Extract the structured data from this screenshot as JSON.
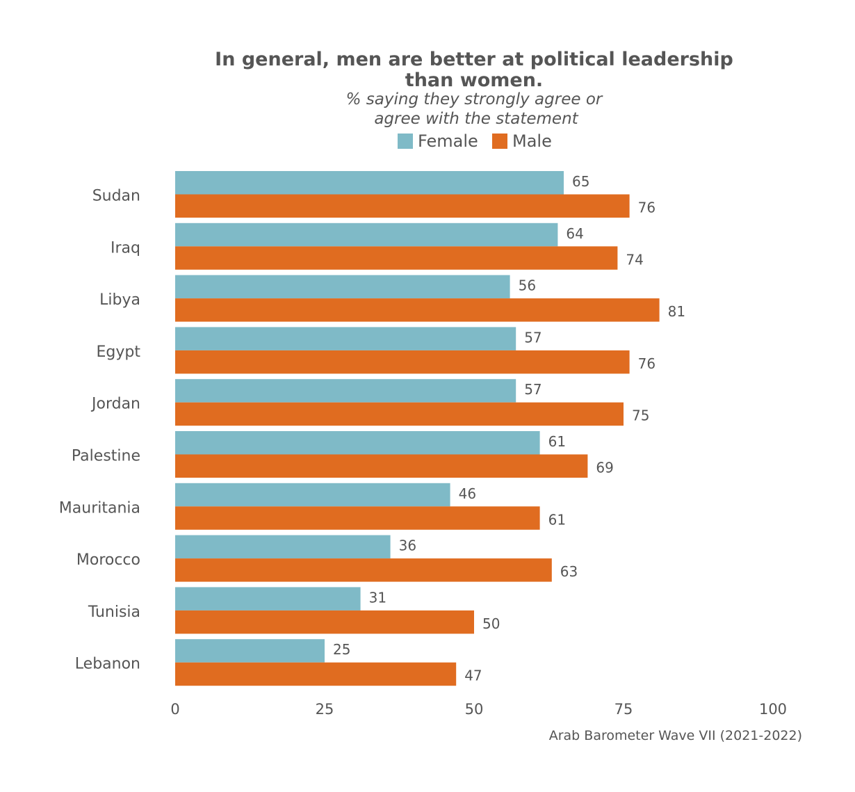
{
  "chart_data": {
    "type": "bar",
    "orientation": "horizontal",
    "title": "In general, men are better at political leadership than women.",
    "title_lines": [
      "In general, men are better at political leadership",
      "than women."
    ],
    "subtitle": "% saying they strongly agree or agree with the statement",
    "subtitle_lines": [
      "% saying they strongly agree or",
      "agree with the statement"
    ],
    "caption": "Arab Barometer Wave VII (2021-2022)",
    "legend_position": "top",
    "grid": false,
    "categories": [
      "Sudan",
      "Iraq",
      "Libya",
      "Egypt",
      "Jordan",
      "Palestine",
      "Mauritania",
      "Morocco",
      "Tunisia",
      "Lebanon"
    ],
    "series": [
      {
        "name": "Female",
        "color": "#7fbac7",
        "values": [
          65,
          64,
          56,
          57,
          57,
          61,
          46,
          36,
          31,
          25
        ]
      },
      {
        "name": "Male",
        "color": "#e06c20",
        "values": [
          76,
          74,
          81,
          76,
          75,
          69,
          61,
          63,
          50,
          47
        ]
      }
    ],
    "xlim": [
      0,
      100
    ],
    "xticks": [
      0,
      25,
      50,
      75,
      100
    ]
  },
  "colors": {
    "title": "#555555",
    "label": "#555555"
  }
}
